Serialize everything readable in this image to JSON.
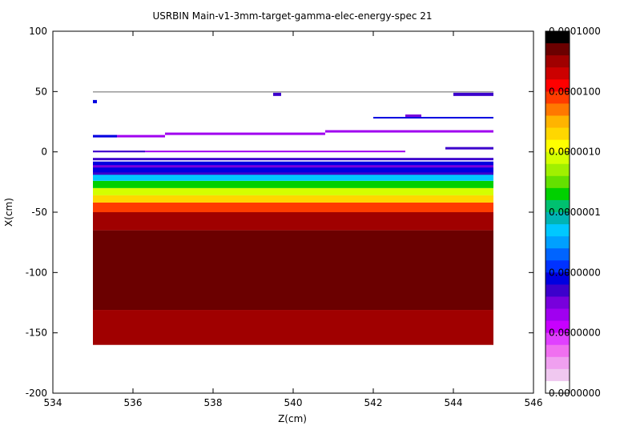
{
  "chart_data": {
    "type": "heatmap",
    "title": "USRBIN Main-v1-3mm-target-gamma-elec-energy-spec 21",
    "xlabel": "Z(cm)",
    "ylabel": "X(cm)",
    "xlim": [
      534,
      546
    ],
    "ylim": [
      -200,
      100
    ],
    "xticks": [
      "534",
      "536",
      "538",
      "540",
      "542",
      "544",
      "546"
    ],
    "yticks": [
      "100",
      "50",
      "0",
      "-50",
      "-100",
      "-150",
      "-200"
    ],
    "colorbar": {
      "labels": [
        "0.0001000",
        "0.0000100",
        "0.0000010",
        "0.0000001",
        "0.0000000",
        "0.0000000",
        "0.0000000"
      ],
      "colors": [
        "#000000",
        "#6b0000",
        "#a00000",
        "#cc0000",
        "#ff0000",
        "#ff3c00",
        "#ff7800",
        "#ffb400",
        "#ffd700",
        "#ffff00",
        "#d4ff00",
        "#a0f000",
        "#64e000",
        "#00d000",
        "#00c070",
        "#00b4b4",
        "#00c8ff",
        "#00a0ff",
        "#0064ff",
        "#0032ff",
        "#0000e0",
        "#3c00cc",
        "#7800dc",
        "#a000f0",
        "#c800ff",
        "#e040ff",
        "#f070f0",
        "#f0a0f0",
        "#f0c8f0",
        "#ffffff"
      ]
    },
    "data_extent": {
      "z": [
        535,
        545
      ],
      "x": [
        -160,
        50
      ]
    },
    "bands": [
      {
        "x": [
          -160,
          -131
        ],
        "level": "#a00000"
      },
      {
        "x": [
          -131,
          -65
        ],
        "level": "#6b0000"
      },
      {
        "x": [
          -65,
          -50
        ],
        "level": "#a00000"
      },
      {
        "x": [
          -50,
          -42
        ],
        "level": "#ff3c00"
      },
      {
        "x": [
          -42,
          -36
        ],
        "level": "#ffd700"
      },
      {
        "x": [
          -36,
          -30
        ],
        "level": "#d4ff00"
      },
      {
        "x": [
          -30,
          -24
        ],
        "level": "#00d000"
      },
      {
        "x": [
          -24,
          -18
        ],
        "level": "#00c8ff"
      },
      {
        "x": [
          -18,
          -8
        ],
        "level": "#0000e0"
      }
    ]
  }
}
